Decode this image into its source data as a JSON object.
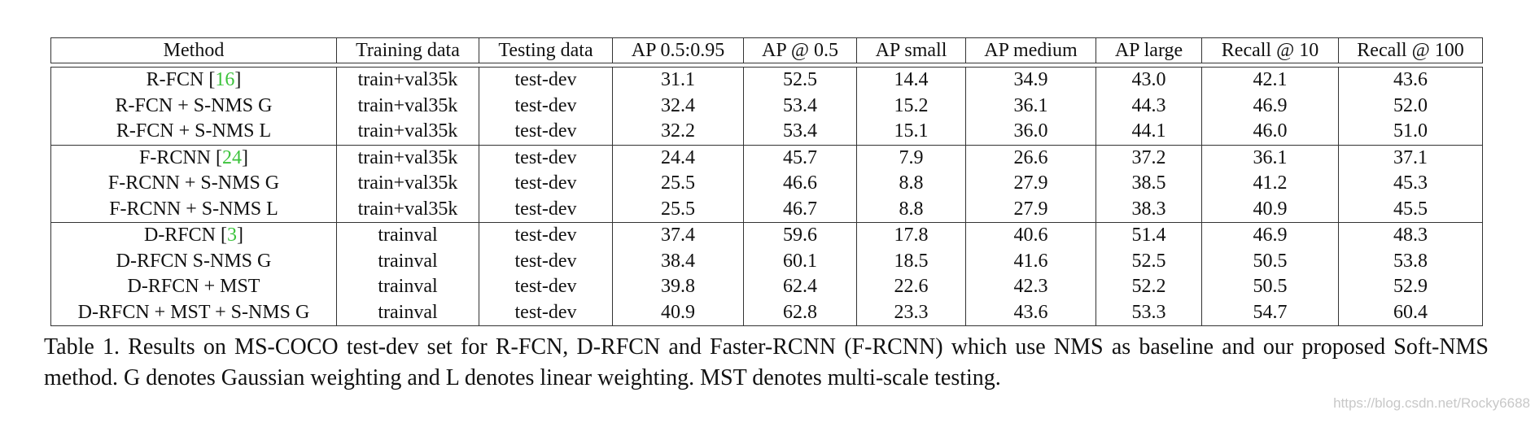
{
  "table": {
    "header": [
      "Method",
      "Training data",
      "Testing data",
      "AP 0.5:0.95",
      "AP @ 0.5",
      "AP small",
      "AP medium",
      "AP large",
      "Recall @ 10",
      "Recall @ 100"
    ],
    "groups": [
      [
        {
          "method": "R-FCN",
          "cite": "[16]",
          "cells": [
            "train+val35k",
            "test-dev",
            "31.1",
            "52.5",
            "14.4",
            "34.9",
            "43.0",
            "42.1",
            "43.6"
          ],
          "bold": []
        },
        {
          "method": "R-FCN + S-NMS G",
          "cells": [
            "train+val35k",
            "test-dev",
            "32.4",
            "53.4",
            "15.2",
            "36.1",
            "44.3",
            "46.9",
            "52.0"
          ],
          "bold": [
            2,
            3,
            4,
            5,
            6,
            7,
            8
          ]
        },
        {
          "method": "R-FCN + S-NMS L",
          "cells": [
            "train+val35k",
            "test-dev",
            "32.2",
            "53.4",
            "15.1",
            "36.0",
            "44.1",
            "46.0",
            "51.0"
          ],
          "bold": [
            3
          ]
        }
      ],
      [
        {
          "method": "F-RCNN",
          "cite": "[24]",
          "cells": [
            "train+val35k",
            "test-dev",
            "24.4",
            "45.7",
            "7.9",
            "26.6",
            "37.2",
            "36.1",
            "37.1"
          ],
          "bold": []
        },
        {
          "method": "F-RCNN + S-NMS G",
          "cells": [
            "train+val35k",
            "test-dev",
            "25.5",
            "46.6",
            "8.8",
            "27.9",
            "38.5",
            "41.2",
            "45.3"
          ],
          "bold": [
            2,
            4,
            5,
            6,
            7
          ]
        },
        {
          "method": "F-RCNN + S-NMS L",
          "cells": [
            "train+val35k",
            "test-dev",
            "25.5",
            "46.7",
            "8.8",
            "27.9",
            "38.3",
            "40.9",
            "45.5"
          ],
          "bold": [
            2,
            3,
            4,
            5,
            8
          ]
        }
      ],
      [
        {
          "method": "D-RFCN",
          "cite": "[3]",
          "cells": [
            "trainval",
            "test-dev",
            "37.4",
            "59.6",
            "17.8",
            "40.6",
            "51.4",
            "46.9",
            "48.3"
          ],
          "bold": []
        },
        {
          "method": "D-RFCN S-NMS G",
          "cells": [
            "trainval",
            "test-dev",
            "38.4",
            "60.1",
            "18.5",
            "41.6",
            "52.5",
            "50.5",
            "53.8"
          ],
          "bold": [
            2,
            3,
            4,
            5,
            6,
            7,
            8
          ]
        },
        {
          "method": "D-RFCN + MST",
          "cells": [
            "trainval",
            "test-dev",
            "39.8",
            "62.4",
            "22.6",
            "42.3",
            "52.2",
            "50.5",
            "52.9"
          ],
          "bold": []
        },
        {
          "method": "D-RFCN + MST + S-NMS G",
          "cells": [
            "trainval",
            "test-dev",
            "40.9",
            "62.8",
            "23.3",
            "43.6",
            "53.3",
            "54.7",
            "60.4"
          ],
          "bold": [
            2,
            3,
            4,
            5,
            6,
            7,
            8
          ]
        }
      ]
    ],
    "caption": "Table 1. Results on MS-COCO test-dev set for R-FCN, D-RFCN and Faster-RCNN (F-RCNN) which use NMS as baseline and our proposed Soft-NMS method. G denotes Gaussian weighting and L denotes linear weighting. MST denotes multi-scale testing."
  },
  "watermark": "https://blog.csdn.net/Rocky6688"
}
